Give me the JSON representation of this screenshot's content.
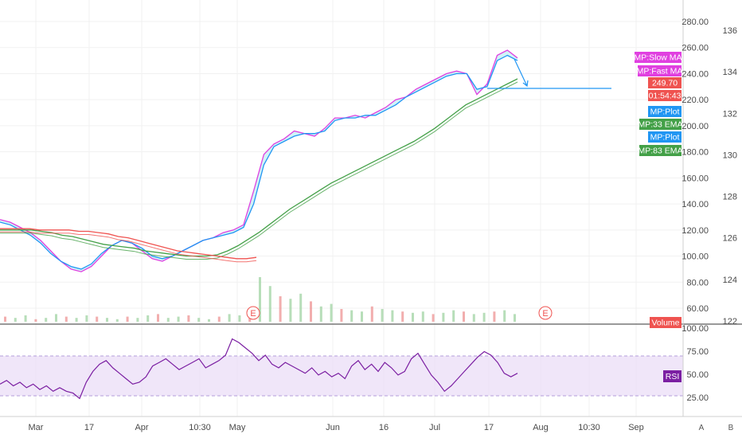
{
  "chart_data": {
    "type": "line",
    "price_axis_ticks": [
      "280.00",
      "260.00",
      "240.00",
      "220.00",
      "200.00",
      "180.00",
      "160.00",
      "140.00",
      "120.00",
      "100.00",
      "80.00",
      "60.00"
    ],
    "secondary_axis_ticks": [
      "136",
      "134",
      "132",
      "130",
      "128",
      "126",
      "124",
      "122"
    ],
    "rsi_axis_ticks": [
      "100.00",
      "75.00",
      "50.00",
      "25.00"
    ],
    "x_tick_labels": [
      "Mar",
      "17",
      "Apr",
      "10:30",
      "May",
      "Jun",
      "16",
      "Jul",
      "17",
      "Aug",
      "10:30",
      "Sep"
    ],
    "price_labels": [
      {
        "text": "MP:Slow MA",
        "color": "#e040e0"
      },
      {
        "text": "MP:Fast MA",
        "color": "#e040e0"
      },
      {
        "text": "249.70",
        "color": "#ef5350"
      },
      {
        "text": "01:54:43",
        "color": "#ef5350"
      },
      {
        "text": "MP:Plot",
        "color": "#2196f3"
      },
      {
        "text": "MP:33 EMA",
        "color": "#43a047"
      },
      {
        "text": "MP:Plot",
        "color": "#2196f3"
      },
      {
        "text": "MP:83 EMA",
        "color": "#43a047"
      },
      {
        "text": "Volume",
        "color": "#ef5350"
      }
    ],
    "rsi_label": "RSI",
    "earnings_marker": "E",
    "corner_buttons": [
      "A",
      "B"
    ],
    "price_series": [
      {
        "name": "Fast MA",
        "color": "#e040e0",
        "y": [
          128,
          126,
          122,
          118,
          112,
          104,
          96,
          90,
          88,
          92,
          100,
          108,
          112,
          110,
          104,
          98,
          96,
          100,
          104,
          108,
          112,
          114,
          118,
          120,
          124,
          150,
          178,
          186,
          190,
          196,
          194,
          192,
          198,
          206,
          206,
          208,
          206,
          210,
          214,
          220,
          222,
          228,
          232,
          236,
          240,
          242,
          240,
          224,
          232,
          254,
          258,
          252
        ]
      },
      {
        "name": "Plot",
        "color": "#2196f3",
        "y": [
          126,
          124,
          120,
          116,
          110,
          102,
          96,
          92,
          90,
          94,
          102,
          108,
          112,
          110,
          106,
          100,
          98,
          100,
          104,
          108,
          112,
          114,
          116,
          118,
          122,
          140,
          170,
          184,
          188,
          192,
          194,
          194,
          196,
          204,
          206,
          206,
          208,
          208,
          212,
          216,
          222,
          226,
          230,
          234,
          238,
          240,
          240,
          228,
          230,
          250,
          254,
          250
        ]
      },
      {
        "name": "33 EMA",
        "color": "#43a047",
        "y": [
          120,
          120,
          120,
          120,
          119,
          118,
          116,
          115,
          113,
          111,
          109,
          108,
          107,
          106,
          104,
          103,
          102,
          101,
          100,
          100,
          100,
          101,
          104,
          108,
          113,
          118,
          124,
          130,
          136,
          141,
          146,
          151,
          156,
          160,
          164,
          168,
          172,
          176,
          180,
          184,
          188,
          193,
          198,
          204,
          210,
          216,
          220,
          224,
          228,
          232,
          236
        ]
      },
      {
        "name": "83 EMA",
        "color": "#ef5350",
        "y": [
          121,
          121,
          121,
          121,
          120,
          120,
          120,
          120,
          119,
          119,
          118,
          117,
          115,
          114,
          112,
          110,
          108,
          106,
          104,
          103,
          102,
          101,
          100,
          99,
          98,
          98,
          99
        ]
      }
    ],
    "volume_series": [
      4,
      3,
      5,
      2,
      3,
      6,
      4,
      3,
      5,
      4,
      3,
      2,
      4,
      3,
      5,
      6,
      3,
      4,
      5,
      3,
      2,
      4,
      6,
      5,
      3,
      35,
      28,
      20,
      18,
      22,
      16,
      12,
      14,
      10,
      9,
      8,
      12,
      10,
      9,
      8,
      7,
      8,
      6,
      7,
      9,
      8,
      6,
      7,
      8,
      9,
      6
    ],
    "rsi_series": [
      38,
      42,
      36,
      40,
      34,
      38,
      32,
      36,
      30,
      34,
      30,
      28,
      22,
      40,
      52,
      60,
      64,
      56,
      50,
      44,
      38,
      40,
      46,
      58,
      62,
      66,
      60,
      54,
      58,
      62,
      66,
      56,
      60,
      64,
      70,
      88,
      84,
      78,
      72,
      64,
      70,
      60,
      56,
      62,
      58,
      54,
      50,
      56,
      48,
      52,
      46,
      50,
      44,
      58,
      64,
      54,
      60,
      52,
      62,
      56,
      48,
      52,
      66,
      72,
      60,
      48,
      40,
      30,
      36,
      44,
      52,
      60,
      68,
      74,
      70,
      62,
      50,
      46,
      50
    ]
  }
}
